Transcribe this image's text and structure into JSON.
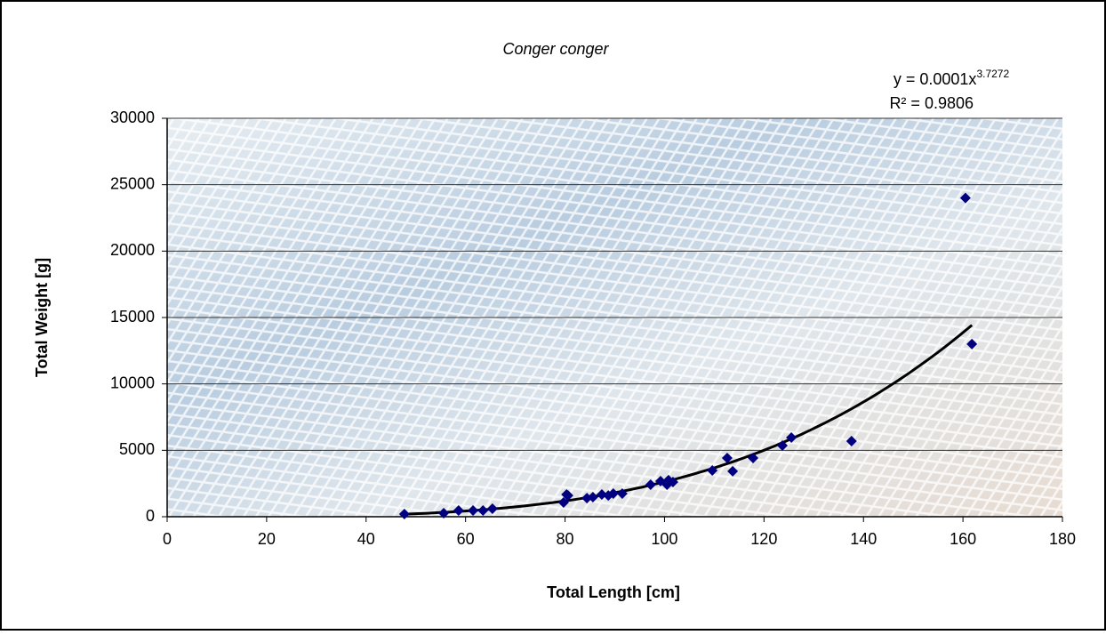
{
  "chart_data": {
    "type": "scatter",
    "title": "Conger conger",
    "x_label": "Total Length [cm]",
    "y_label": "Total Weight [g]",
    "trendline": {
      "type": "power",
      "equation": "y = 0.0001x",
      "exponent": "3.7272",
      "r_squared": "R² = 0.9806",
      "color": "#000000"
    },
    "series": [
      {
        "name": "Conger conger",
        "color": "#000080",
        "x": [
          47.7,
          55.6,
          58.6,
          61.5,
          63.5,
          65.4,
          79.7,
          80.3,
          80.6,
          84.4,
          85.6,
          87.4,
          88.7,
          89.7,
          91.5,
          97.2,
          99.2,
          100.5,
          100.8,
          101.7,
          109.6,
          112.6,
          113.7,
          117.8,
          123.7,
          125.5,
          137.6,
          160.5,
          161.8
        ],
        "values": [
          200,
          270,
          470,
          470,
          470,
          600,
          1070,
          1670,
          1600,
          1400,
          1470,
          1670,
          1600,
          1740,
          1740,
          2410,
          2680,
          2410,
          2750,
          2610,
          3480,
          4420,
          3420,
          4420,
          5360,
          5960,
          5690,
          24000,
          13000
        ]
      }
    ],
    "xlim": [
      0,
      180
    ],
    "xticks": [
      0,
      20,
      40,
      60,
      80,
      100,
      120,
      140,
      160,
      180
    ],
    "ylim": [
      0,
      30000
    ],
    "yticks": [
      0,
      5000,
      10000,
      15000,
      20000,
      25000,
      30000
    ],
    "grid": true
  }
}
